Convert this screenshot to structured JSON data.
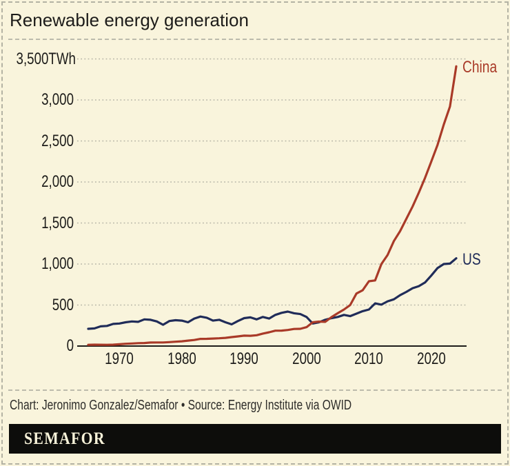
{
  "header": {
    "title": "Renewable energy generation"
  },
  "chart_data": {
    "type": "line",
    "title": "Renewable energy generation",
    "unit": "TWh",
    "xlabel": "",
    "ylabel": "",
    "ylim": [
      0,
      3500
    ],
    "xlim": [
      1965,
      2024
    ],
    "grid": "horizontal-dotted",
    "legend": "inline-end-labels",
    "years": {
      "start": 1965,
      "end": 2024
    },
    "y_ticks": [
      {
        "value": 0,
        "label": "0"
      },
      {
        "value": 500,
        "label": "500"
      },
      {
        "value": 1000,
        "label": "1,000"
      },
      {
        "value": 1500,
        "label": "1,500"
      },
      {
        "value": 2000,
        "label": "2,000"
      },
      {
        "value": 2500,
        "label": "2,500"
      },
      {
        "value": 3000,
        "label": "3,000"
      },
      {
        "value": 3500,
        "label": "3,500TWh"
      }
    ],
    "x_ticks": [
      {
        "value": 1970,
        "label": "1970"
      },
      {
        "value": 1980,
        "label": "1980"
      },
      {
        "value": 1990,
        "label": "1990"
      },
      {
        "value": 2000,
        "label": "2000"
      },
      {
        "value": 2010,
        "label": "2010"
      },
      {
        "value": 2020,
        "label": "2020"
      }
    ],
    "series": [
      {
        "name": "US",
        "label": "US",
        "color": "#202c59",
        "values": [
          210,
          215,
          240,
          245,
          270,
          275,
          290,
          300,
          295,
          325,
          320,
          300,
          260,
          305,
          315,
          310,
          290,
          335,
          360,
          345,
          310,
          320,
          290,
          265,
          305,
          340,
          350,
          325,
          355,
          335,
          380,
          405,
          420,
          400,
          390,
          355,
          275,
          290,
          320,
          340,
          355,
          380,
          365,
          395,
          425,
          445,
          520,
          505,
          545,
          570,
          620,
          660,
          705,
          730,
          775,
          860,
          950,
          1000,
          1005,
          1070
        ]
      },
      {
        "name": "China",
        "label": "China",
        "color": "#a93a28",
        "values": [
          15,
          17,
          16,
          15,
          17,
          22,
          28,
          31,
          35,
          37,
          43,
          44,
          44,
          48,
          53,
          58,
          66,
          74,
          87,
          88,
          92,
          95,
          100,
          109,
          118,
          127,
          125,
          132,
          152,
          168,
          187,
          188,
          196,
          208,
          210,
          230,
          290,
          298,
          295,
          353,
          400,
          445,
          500,
          640,
          680,
          790,
          800,
          1000,
          1110,
          1280,
          1400,
          1550,
          1700,
          1870,
          2050,
          2250,
          2450,
          2700,
          2920,
          3410
        ]
      }
    ]
  },
  "footer": {
    "credit": "Chart: Jeronimo Gonzalez/Semafor • Source: Energy Institute via OWID",
    "logo_text": "SEMAFOR"
  },
  "colors": {
    "background": "#f9f4dc",
    "text": "#1d1c1a",
    "grid": "#b5b4a6",
    "axis": "#1d1c1a",
    "border_dash": "#b3b2a3",
    "china": "#a93a28",
    "us": "#202c59",
    "logo_bar": "#0d0d0b",
    "logo_text": "#f7f2d9"
  }
}
